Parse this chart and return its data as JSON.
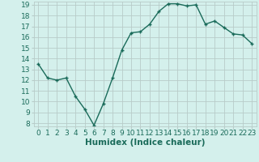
{
  "x": [
    0,
    1,
    2,
    3,
    4,
    5,
    6,
    7,
    8,
    9,
    10,
    11,
    12,
    13,
    14,
    15,
    16,
    17,
    18,
    19,
    20,
    21,
    22,
    23
  ],
  "y": [
    13.5,
    12.2,
    12.0,
    12.2,
    10.5,
    9.3,
    7.8,
    9.8,
    12.2,
    14.8,
    16.4,
    16.5,
    17.2,
    18.4,
    19.1,
    19.1,
    18.9,
    19.0,
    17.2,
    17.5,
    16.9,
    16.3,
    16.2,
    15.4
  ],
  "xlabel": "Humidex (Indice chaleur)",
  "ylabel": "",
  "title": "",
  "bg_color": "#d4f0ec",
  "line_color": "#1a6b5a",
  "marker": "+",
  "xlim": [
    -0.5,
    23.5
  ],
  "ylim": [
    7.7,
    19.3
  ],
  "yticks": [
    8,
    9,
    10,
    11,
    12,
    13,
    14,
    15,
    16,
    17,
    18,
    19
  ],
  "xticks": [
    0,
    1,
    2,
    3,
    4,
    5,
    6,
    7,
    8,
    9,
    10,
    11,
    12,
    13,
    14,
    15,
    16,
    17,
    18,
    19,
    20,
    21,
    22,
    23
  ],
  "grid_color": "#b8ccc9",
  "tick_label_color": "#1a6b5a",
  "xlabel_color": "#1a6b5a",
  "xlabel_fontsize": 7.5,
  "tick_fontsize": 6.5,
  "linewidth": 1.0,
  "markersize": 3.5,
  "markeredgewidth": 1.0
}
